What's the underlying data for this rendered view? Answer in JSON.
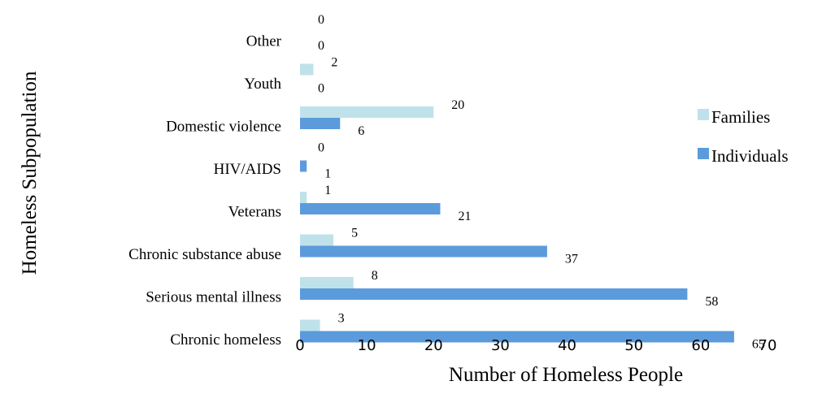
{
  "chart_data": {
    "type": "bar",
    "orientation": "horizontal",
    "categories": [
      "Chronic homeless",
      "Serious mental illness",
      "Chronic substance abuse",
      "Veterans",
      "HIV/AIDS",
      "Domestic violence",
      "Youth",
      "Other"
    ],
    "series": [
      {
        "name": "Families",
        "values": [
          3,
          8,
          5,
          1,
          0,
          20,
          2,
          0
        ],
        "color": "#bfe2ea"
      },
      {
        "name": "Individuals",
        "values": [
          65,
          58,
          37,
          21,
          1,
          6,
          0,
          0
        ],
        "color": "#5b9bdc"
      }
    ],
    "xlabel": "Number of Homeless People",
    "ylabel": "Homeless Subpopulation",
    "xlim": [
      0,
      70
    ],
    "xticks": [
      0,
      10,
      20,
      30,
      40,
      50,
      60,
      70
    ],
    "grid": false,
    "legend_position": "right"
  }
}
